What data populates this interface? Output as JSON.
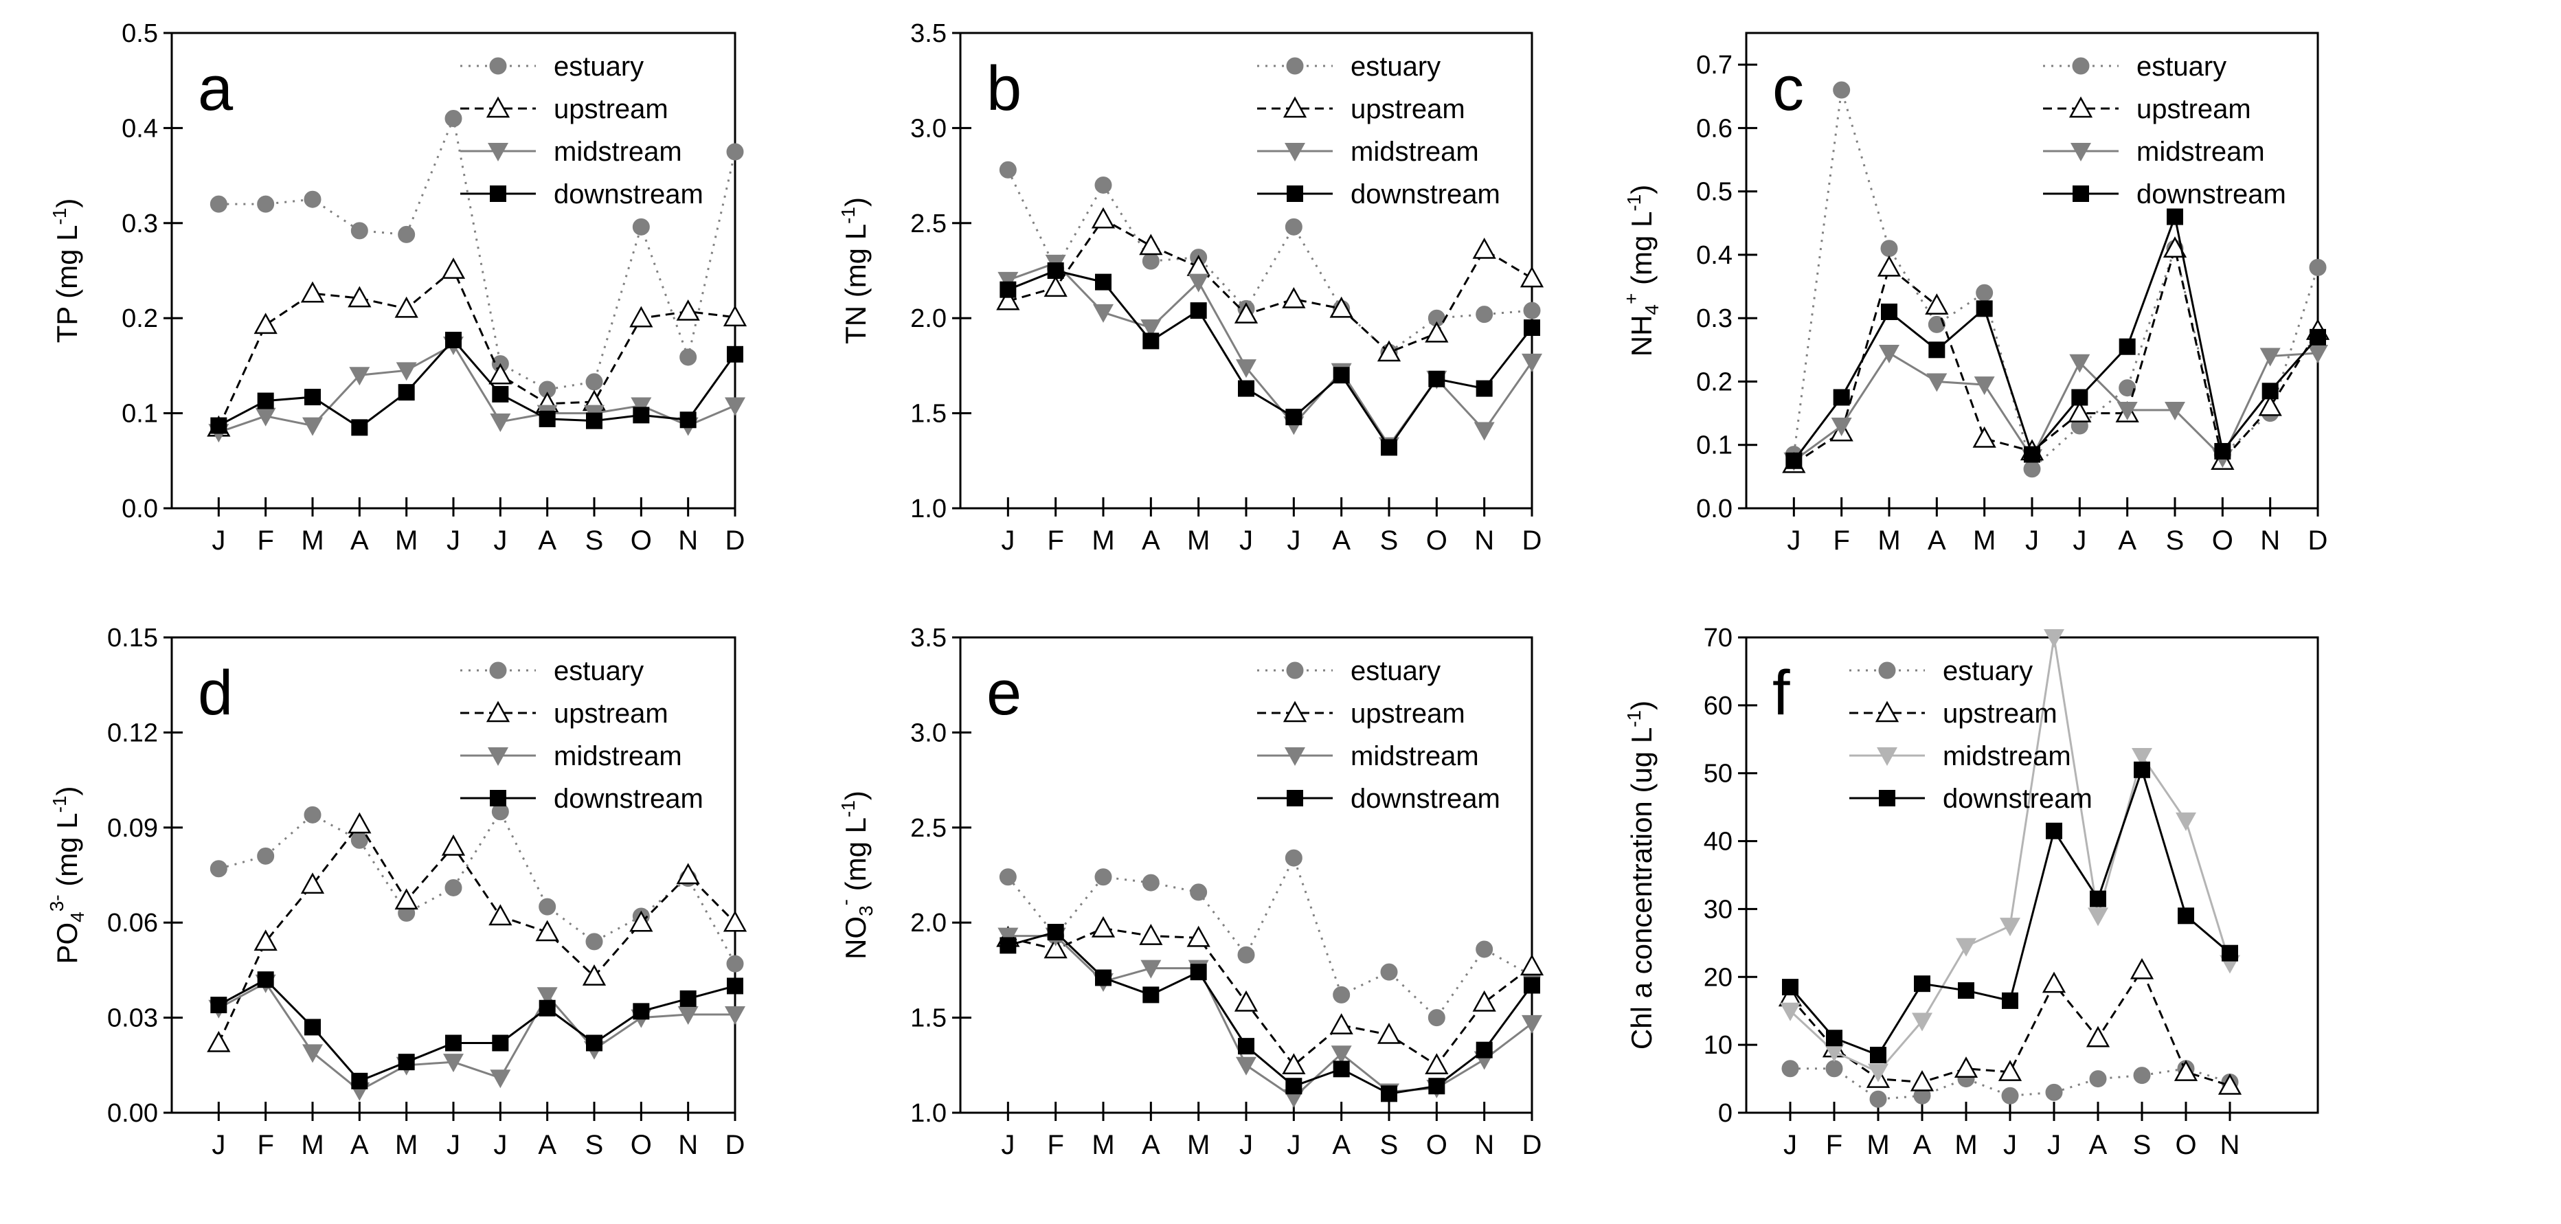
{
  "chart_data": [
    {
      "panel_letter": "a",
      "type": "line",
      "categories": [
        "J",
        "F",
        "M",
        "A",
        "M",
        "J",
        "J",
        "A",
        "S",
        "O",
        "N",
        "D"
      ],
      "ylabel_main": "TP (mg L",
      "ylabel_sup": "-1",
      "ylabel_end": ")",
      "ylim": [
        0,
        0.5
      ],
      "yticks": [
        0.0,
        0.1,
        0.2,
        0.3,
        0.4,
        0.5
      ],
      "ytick_labels": [
        "0.0",
        "0.1",
        "0.2",
        "0.3",
        "0.4",
        "0.5"
      ],
      "legend_position": "top-right",
      "series": [
        {
          "name": "estuary",
          "values": [
            0.32,
            0.32,
            0.325,
            0.292,
            0.288,
            0.41,
            0.152,
            0.125,
            0.133,
            0.296,
            0.159,
            0.375
          ]
        },
        {
          "name": "upstream",
          "values": [
            0.085,
            0.193,
            0.226,
            0.221,
            0.21,
            0.251,
            0.14,
            0.11,
            0.112,
            0.2,
            0.207,
            0.201
          ]
        },
        {
          "name": "midstream",
          "values": [
            0.08,
            0.097,
            0.087,
            0.14,
            0.145,
            0.172,
            0.091,
            0.1,
            0.1,
            0.108,
            0.087,
            0.108
          ]
        },
        {
          "name": "downstream",
          "values": [
            0.087,
            0.113,
            0.117,
            0.085,
            0.122,
            0.177,
            0.12,
            0.094,
            0.092,
            0.098,
            0.093,
            0.162
          ]
        }
      ]
    },
    {
      "panel_letter": "b",
      "type": "line",
      "categories": [
        "J",
        "F",
        "M",
        "A",
        "M",
        "J",
        "J",
        "A",
        "S",
        "O",
        "N",
        "D"
      ],
      "ylabel_main": "TN (mg L",
      "ylabel_sup": "-1",
      "ylabel_end": ")",
      "ylim": [
        1.0,
        3.5
      ],
      "yticks": [
        1.0,
        1.5,
        2.0,
        2.5,
        3.0,
        3.5
      ],
      "ytick_labels": [
        "1.0",
        "1.5",
        "2.0",
        "2.5",
        "3.0",
        "3.5"
      ],
      "legend_position": "top-right",
      "series": [
        {
          "name": "estuary",
          "values": [
            2.78,
            2.26,
            2.7,
            2.3,
            2.32,
            2.05,
            2.48,
            2.05,
            1.82,
            2.0,
            2.02,
            2.04
          ]
        },
        {
          "name": "upstream",
          "values": [
            2.09,
            2.16,
            2.52,
            2.38,
            2.27,
            2.02,
            2.1,
            2.05,
            1.82,
            1.92,
            2.36,
            2.21
          ]
        },
        {
          "name": "midstream",
          "values": [
            2.2,
            2.29,
            2.03,
            1.95,
            2.19,
            1.74,
            1.44,
            1.72,
            1.33,
            1.68,
            1.41,
            1.77
          ]
        },
        {
          "name": "downstream",
          "values": [
            2.15,
            2.25,
            2.19,
            1.88,
            2.04,
            1.63,
            1.48,
            1.7,
            1.32,
            1.68,
            1.63,
            1.95
          ]
        }
      ]
    },
    {
      "panel_letter": "c",
      "type": "line",
      "categories": [
        "J",
        "F",
        "M",
        "A",
        "M",
        "J",
        "J",
        "A",
        "S",
        "O",
        "N",
        "D"
      ],
      "ylabel_main": "NH",
      "ylabel_sub": "4",
      "ylabel_sup": "+",
      "ylabel_mid": " (mg L",
      "ylabel_sup2": "-1",
      "ylabel_end": ")",
      "ylim": [
        0,
        0.75
      ],
      "yticks": [
        0.0,
        0.1,
        0.2,
        0.3,
        0.4,
        0.5,
        0.6,
        0.7
      ],
      "ytick_labels": [
        "0.0",
        "0.1",
        "0.2",
        "0.3",
        "0.4",
        "0.5",
        "0.6",
        "0.7"
      ],
      "legend_position": "top-right",
      "series": [
        {
          "name": "estuary",
          "values": [
            0.085,
            0.66,
            0.41,
            0.29,
            0.34,
            0.062,
            0.13,
            0.19,
            0.41,
            0.085,
            0.15,
            0.38
          ]
        },
        {
          "name": "upstream",
          "values": [
            0.07,
            0.12,
            0.38,
            0.32,
            0.11,
            0.09,
            0.15,
            0.15,
            0.41,
            0.075,
            0.16,
            0.28
          ]
        },
        {
          "name": "midstream",
          "values": [
            0.075,
            0.13,
            0.245,
            0.2,
            0.195,
            0.08,
            0.23,
            0.155,
            0.155,
            0.08,
            0.24,
            0.245
          ]
        },
        {
          "name": "downstream",
          "values": [
            0.075,
            0.175,
            0.31,
            0.25,
            0.315,
            0.085,
            0.175,
            0.255,
            0.46,
            0.09,
            0.185,
            0.27
          ]
        }
      ]
    },
    {
      "panel_letter": "d",
      "type": "line",
      "categories": [
        "J",
        "F",
        "M",
        "A",
        "M",
        "J",
        "J",
        "A",
        "S",
        "O",
        "N",
        "D"
      ],
      "ylabel_main": "PO",
      "ylabel_sub": "4",
      "ylabel_sup": "3-",
      "ylabel_mid": " (mg L",
      "ylabel_sup2": "-1",
      "ylabel_end": ")",
      "ylim": [
        0,
        0.15
      ],
      "yticks": [
        0.0,
        0.03,
        0.06,
        0.09,
        0.12,
        0.15
      ],
      "ytick_labels": [
        "0.00",
        "0.03",
        "0.06",
        "0.09",
        "0.12",
        "0.15"
      ],
      "legend_position": "top-right",
      "series": [
        {
          "name": "estuary",
          "values": [
            0.077,
            0.081,
            0.094,
            0.086,
            0.063,
            0.071,
            0.095,
            0.065,
            0.054,
            0.062,
            0.074,
            0.047
          ]
        },
        {
          "name": "upstream",
          "values": [
            0.022,
            0.054,
            0.072,
            0.091,
            0.067,
            0.084,
            0.062,
            0.057,
            0.043,
            0.06,
            0.075,
            0.06
          ]
        },
        {
          "name": "midstream",
          "values": [
            0.033,
            0.041,
            0.019,
            0.007,
            0.015,
            0.016,
            0.011,
            0.037,
            0.02,
            0.03,
            0.031,
            0.031
          ]
        },
        {
          "name": "downstream",
          "values": [
            0.034,
            0.042,
            0.027,
            0.01,
            0.016,
            0.022,
            0.022,
            0.033,
            0.022,
            0.032,
            0.036,
            0.04
          ]
        }
      ]
    },
    {
      "panel_letter": "e",
      "type": "line",
      "categories": [
        "J",
        "F",
        "M",
        "A",
        "M",
        "J",
        "J",
        "A",
        "S",
        "O",
        "N",
        "D"
      ],
      "ylabel_main": "NO",
      "ylabel_sub": "3",
      "ylabel_sup": "-",
      "ylabel_mid": " (mg L",
      "ylabel_sup2": "-1",
      "ylabel_end": ")",
      "ylim": [
        1.0,
        3.5
      ],
      "yticks": [
        1.0,
        1.5,
        2.0,
        2.5,
        3.0,
        3.5
      ],
      "ytick_labels": [
        "1.0",
        "1.5",
        "2.0",
        "2.5",
        "3.0",
        "3.5"
      ],
      "legend_position": "top-right",
      "series": [
        {
          "name": "estuary",
          "values": [
            2.24,
            1.93,
            2.24,
            2.21,
            2.16,
            1.83,
            2.34,
            1.62,
            1.74,
            1.5,
            1.86,
            1.72
          ]
        },
        {
          "name": "upstream",
          "values": [
            1.92,
            1.86,
            1.97,
            1.93,
            1.92,
            1.58,
            1.25,
            1.46,
            1.41,
            1.25,
            1.58,
            1.77
          ]
        },
        {
          "name": "midstream",
          "values": [
            1.93,
            1.93,
            1.69,
            1.76,
            1.76,
            1.25,
            1.08,
            1.31,
            1.11,
            1.13,
            1.28,
            1.47
          ]
        },
        {
          "name": "downstream",
          "values": [
            1.88,
            1.95,
            1.71,
            1.62,
            1.74,
            1.35,
            1.14,
            1.23,
            1.1,
            1.14,
            1.33,
            1.67
          ]
        }
      ]
    },
    {
      "panel_letter": "f",
      "type": "line",
      "categories": [
        "J",
        "F",
        "M",
        "A",
        "M",
        "J",
        "J",
        "A",
        "S",
        "O",
        "N"
      ],
      "ylabel_main": "Chl a concentration (ug L",
      "ylabel_sup": "-1",
      "ylabel_end": ")",
      "ylim": [
        0,
        70
      ],
      "yticks": [
        0,
        10,
        20,
        30,
        40,
        50,
        60,
        70
      ],
      "ytick_labels": [
        "0",
        "10",
        "20",
        "30",
        "40",
        "50",
        "60",
        "70"
      ],
      "legend_position": "top-left",
      "series": [
        {
          "name": "estuary",
          "values": [
            6.5,
            6.5,
            2.0,
            2.5,
            5.0,
            2.5,
            3.0,
            5.0,
            5.5,
            6.5,
            4.5
          ]
        },
        {
          "name": "upstream",
          "values": [
            17,
            9.5,
            5.0,
            4.5,
            6.5,
            6.0,
            19,
            11,
            21,
            6.0,
            4.0
          ]
        },
        {
          "name": "midstream",
          "values": [
            15,
            9.0,
            6.0,
            13.5,
            24.5,
            27.5,
            70,
            29,
            52.5,
            43,
            22
          ]
        },
        {
          "name": "downstream",
          "values": [
            18.5,
            11,
            8.5,
            19,
            18,
            16.5,
            41.5,
            31.5,
            50.5,
            29,
            23.5
          ]
        }
      ]
    }
  ],
  "series_styles": {
    "estuary": {
      "color": "#808080",
      "dash": "3,9",
      "marker": "circle"
    },
    "upstream": {
      "color": "#000000",
      "dash": "13,8",
      "marker": "triangle-up-open"
    },
    "midstream": {
      "color": "#808080",
      "dash": "",
      "marker": "triangle-down"
    },
    "downstream": {
      "color": "#000000",
      "dash": "",
      "marker": "square"
    }
  },
  "series_styles_override_f": {
    "midstream": {
      "color": "#b4b4b4"
    }
  }
}
